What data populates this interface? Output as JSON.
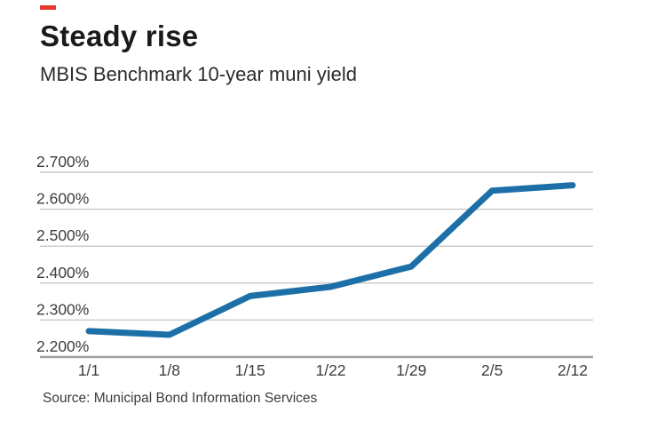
{
  "header": {
    "title": "Steady rise",
    "subtitle": "MBIS Benchmark 10-year muni yield",
    "accent_color": "#e8392f"
  },
  "source_note": "Source: Municipal Bond Information Services",
  "chart_data": {
    "type": "line",
    "title": "Steady rise",
    "subtitle": "MBIS Benchmark 10-year muni yield",
    "categories": [
      "1/1",
      "1/8",
      "1/15",
      "1/22",
      "1/29",
      "2/5",
      "2/12"
    ],
    "series": [
      {
        "name": "MBIS Benchmark 10-year muni yield",
        "values": [
          2.27,
          2.26,
          2.365,
          2.39,
          2.445,
          2.65,
          2.665
        ]
      }
    ],
    "y_ticks": [
      {
        "value": 2.2,
        "label": "2.200%"
      },
      {
        "value": 2.3,
        "label": "2.300%"
      },
      {
        "value": 2.4,
        "label": "2.400%"
      },
      {
        "value": 2.5,
        "label": "2.500%"
      },
      {
        "value": 2.6,
        "label": "2.600%"
      },
      {
        "value": 2.7,
        "label": "2.700%"
      }
    ],
    "ylim": [
      2.2,
      2.7
    ],
    "xlabel": "",
    "ylabel": "",
    "unit": "%",
    "grid": true,
    "legend_position": "none",
    "line_color": "#1d6fa8",
    "grid_color": "#cbcbcb",
    "axis_line_color": "#a3a3a3",
    "text_color": "#3d3d3d"
  }
}
